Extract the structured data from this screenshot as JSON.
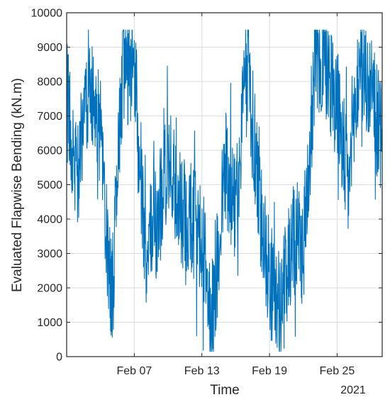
{
  "chart_data": {
    "type": "line",
    "xlabel": "Time",
    "ylabel": "Evaluated Flapwise Bending (kN.m)",
    "year_label": "2021",
    "ylim": [
      0,
      10000
    ],
    "y_ticks": [
      0,
      1000,
      2000,
      3000,
      4000,
      5000,
      6000,
      7000,
      8000,
      9000,
      10000
    ],
    "xlim": [
      "2021-02-01",
      "2021-03-01"
    ],
    "x_ticks": [
      "2021-02-07",
      "2021-02-13",
      "2021-02-19",
      "2021-02-25"
    ],
    "x_tick_labels": [
      "Feb 07",
      "Feb 13",
      "Feb 19",
      "Feb 25"
    ],
    "grid": true,
    "line_color": "#0072BD",
    "series": [
      {
        "x": [
          "2021-02-01",
          "2021-02-02",
          "2021-02-03",
          "2021-02-04",
          "2021-02-05",
          "2021-02-06",
          "2021-02-07",
          "2021-02-08",
          "2021-02-09",
          "2021-02-10",
          "2021-02-11",
          "2021-02-12",
          "2021-02-13",
          "2021-02-14",
          "2021-02-15",
          "2021-02-16",
          "2021-02-17",
          "2021-02-18",
          "2021-02-19",
          "2021-02-20",
          "2021-02-21",
          "2021-02-22",
          "2021-02-23",
          "2021-02-24",
          "2021-02-25",
          "2021-02-26",
          "2021-02-27",
          "2021-02-28",
          "2021-03-01"
        ],
        "values": [
          7500,
          5200,
          8200,
          6400,
          1400,
          8600,
          8200,
          3000,
          3800,
          5800,
          4300,
          4100,
          3300,
          1200,
          5600,
          4200,
          8600,
          4800,
          2300,
          1200,
          3600,
          3100,
          8400,
          8500,
          7400,
          4900,
          8600,
          7600,
          6200
        ]
      }
    ]
  }
}
